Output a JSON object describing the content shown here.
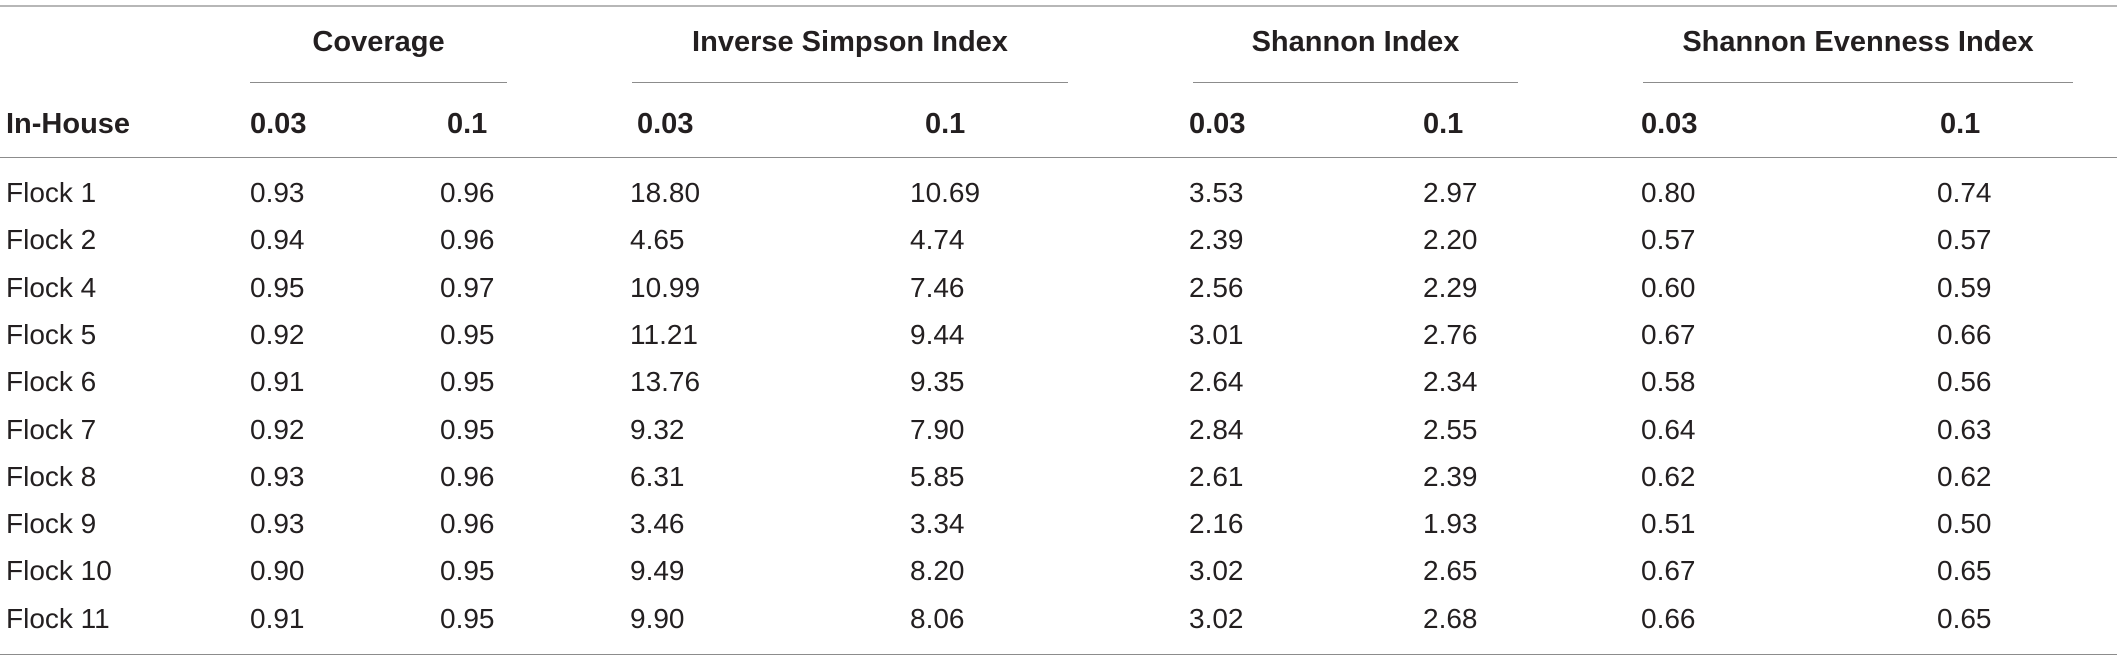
{
  "table": {
    "row_header": "In-House",
    "groups": [
      {
        "title": "Coverage",
        "cols": [
          "0.03",
          "0.1"
        ]
      },
      {
        "title": "Inverse Simpson Index",
        "cols": [
          "0.03",
          "0.1"
        ]
      },
      {
        "title": "Shannon Index",
        "cols": [
          "0.03",
          "0.1"
        ]
      },
      {
        "title": "Shannon Evenness Index",
        "cols": [
          "0.03",
          "0.1"
        ]
      }
    ],
    "rows": [
      {
        "label": "Flock 1",
        "values": [
          "0.93",
          "0.96",
          "18.80",
          "10.69",
          "3.53",
          "2.97",
          "0.80",
          "0.74"
        ]
      },
      {
        "label": "Flock 2",
        "values": [
          "0.94",
          "0.96",
          "4.65",
          "4.74",
          "2.39",
          "2.20",
          "0.57",
          "0.57"
        ]
      },
      {
        "label": "Flock 4",
        "values": [
          "0.95",
          "0.97",
          "10.99",
          "7.46",
          "2.56",
          "2.29",
          "0.60",
          "0.59"
        ]
      },
      {
        "label": "Flock 5",
        "values": [
          "0.92",
          "0.95",
          "11.21",
          "9.44",
          "3.01",
          "2.76",
          "0.67",
          "0.66"
        ]
      },
      {
        "label": "Flock 6",
        "values": [
          "0.91",
          "0.95",
          "13.76",
          "9.35",
          "2.64",
          "2.34",
          "0.58",
          "0.56"
        ]
      },
      {
        "label": "Flock 7",
        "values": [
          "0.92",
          "0.95",
          "9.32",
          "7.90",
          "2.84",
          "2.55",
          "0.64",
          "0.63"
        ]
      },
      {
        "label": "Flock 8",
        "values": [
          "0.93",
          "0.96",
          "6.31",
          "5.85",
          "2.61",
          "2.39",
          "0.62",
          "0.62"
        ]
      },
      {
        "label": "Flock 9",
        "values": [
          "0.93",
          "0.96",
          "3.46",
          "3.34",
          "2.16",
          "1.93",
          "0.51",
          "0.50"
        ]
      },
      {
        "label": "Flock 10",
        "values": [
          "0.90",
          "0.95",
          "9.49",
          "8.20",
          "3.02",
          "2.65",
          "0.67",
          "0.65"
        ]
      },
      {
        "label": "Flock 11",
        "values": [
          "0.91",
          "0.95",
          "9.90",
          "8.06",
          "3.02",
          "2.68",
          "0.66",
          "0.65"
        ]
      }
    ]
  }
}
